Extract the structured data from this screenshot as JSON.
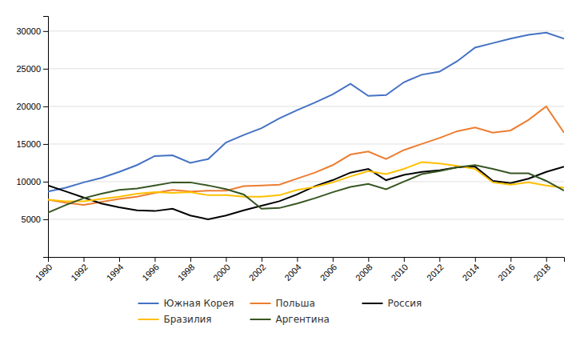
{
  "chart_data": {
    "type": "line",
    "x": [
      1990,
      1991,
      1992,
      1993,
      1994,
      1995,
      1996,
      1997,
      1998,
      1999,
      2000,
      2001,
      2002,
      2003,
      2004,
      2005,
      2006,
      2007,
      2008,
      2009,
      2010,
      2011,
      2012,
      2013,
      2014,
      2015,
      2016,
      2017,
      2018,
      2019
    ],
    "series": [
      {
        "name": "Южная Корея",
        "color": "#4472C4",
        "values": [
          8700,
          9200,
          9900,
          10500,
          11300,
          12200,
          13400,
          13500,
          12500,
          13000,
          15200,
          16200,
          17100,
          18400,
          19500,
          20500,
          21600,
          23000,
          21400,
          21500,
          23200,
          24200,
          24600,
          26000,
          27800,
          28400,
          29000,
          29500,
          29800,
          29000
        ]
      },
      {
        "name": "Польша",
        "color": "#ED7D31",
        "values": [
          7600,
          7200,
          6900,
          7300,
          7700,
          8000,
          8500,
          8900,
          8700,
          8800,
          8800,
          9400,
          9500,
          9600,
          10400,
          11200,
          12200,
          13600,
          14000,
          13000,
          14200,
          15000,
          15800,
          16700,
          17200,
          16500,
          16800,
          18200,
          20000,
          16500
        ]
      },
      {
        "name": "Россия",
        "color": "#000000",
        "values": [
          9500,
          8700,
          7900,
          7100,
          6600,
          6200,
          6100,
          6400,
          5500,
          5000,
          5500,
          6200,
          6800,
          7400,
          8300,
          9400,
          10200,
          11200,
          11700,
          10200,
          10900,
          11300,
          11500,
          11900,
          12000,
          10100,
          9800,
          10400,
          11300,
          12000
        ]
      },
      {
        "name": "Бразилия",
        "color": "#FFC000",
        "values": [
          7600,
          7400,
          7400,
          7700,
          8000,
          8400,
          8600,
          8500,
          8600,
          8200,
          8200,
          8000,
          8000,
          8200,
          8900,
          9300,
          9900,
          10700,
          11400,
          11000,
          11700,
          12600,
          12400,
          12100,
          11700,
          9900,
          9600,
          9900,
          9500,
          9200
        ]
      },
      {
        "name": "Аргентина",
        "color": "#375623",
        "values": [
          5900,
          6900,
          7800,
          8400,
          8900,
          9100,
          9500,
          9900,
          9900,
          9500,
          9000,
          8300,
          6400,
          6500,
          7100,
          7800,
          8600,
          9300,
          9700,
          9000,
          10000,
          11000,
          11400,
          11900,
          12200,
          11700,
          11100,
          11100,
          10100,
          8800
        ]
      }
    ],
    "xlim": [
      1990,
      2019
    ],
    "xticks": [
      1990,
      1992,
      1994,
      1996,
      1998,
      2000,
      2002,
      2004,
      2006,
      2008,
      2010,
      2012,
      2014,
      2016,
      2018
    ],
    "ylim": [
      0,
      32000
    ],
    "yticks": [
      5000,
      10000,
      15000,
      20000,
      25000,
      30000
    ],
    "grid": true,
    "legend": "bottom"
  }
}
